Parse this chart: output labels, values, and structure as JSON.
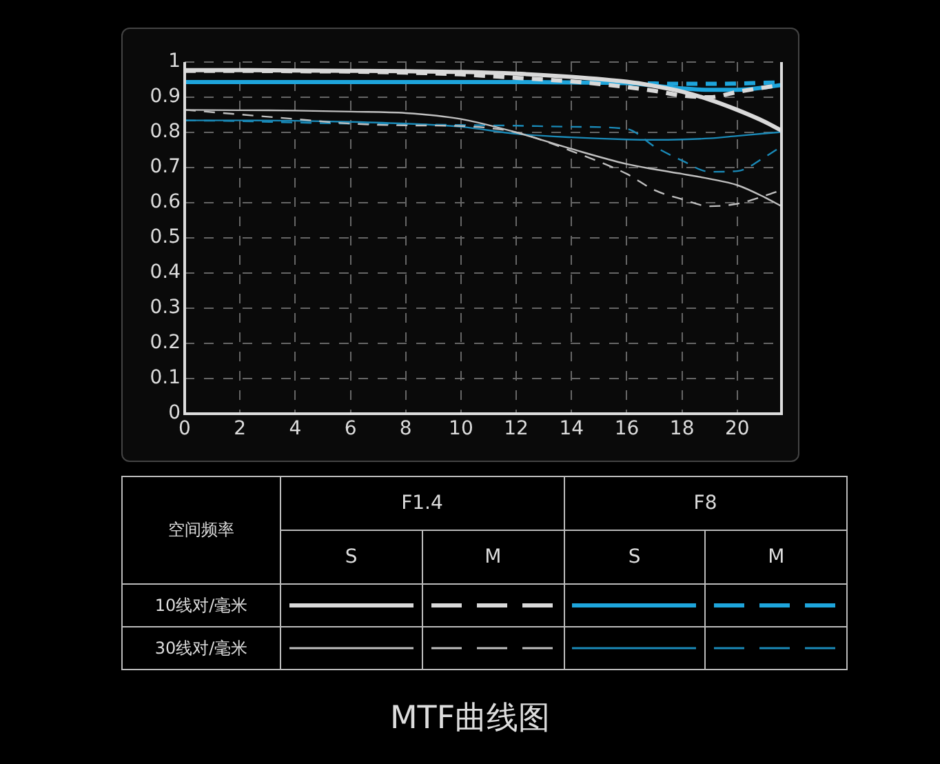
{
  "chart_data": {
    "type": "line",
    "title": "MTF曲线图",
    "legend_title": "空间频率",
    "annotations": [
      "F1.4",
      "F8",
      "S",
      "M",
      "S",
      "M",
      "10线对/毫米",
      "30线对/毫米"
    ],
    "x": [
      0,
      2,
      4,
      6,
      8,
      10,
      12,
      14,
      16,
      17,
      18,
      19,
      20,
      21,
      21.6
    ],
    "xlim": [
      0,
      21.6
    ],
    "xticks": [
      0,
      2,
      4,
      6,
      8,
      10,
      12,
      14,
      16,
      18,
      20
    ],
    "ylim": [
      0,
      1
    ],
    "yticks": [
      0,
      0.1,
      0.2,
      0.3,
      0.4,
      0.5,
      0.6,
      0.7,
      0.8,
      0.9,
      1
    ],
    "grid": true,
    "marker": "none",
    "series": [
      {
        "color": "#d9d9d9",
        "line_style": "solid",
        "values": [
          0.977,
          0.977,
          0.976,
          0.975,
          0.974,
          0.972,
          0.967,
          0.958,
          0.944,
          0.932,
          0.916,
          0.893,
          0.864,
          0.83,
          0.805
        ]
      },
      {
        "color": "#d9d9d9",
        "line_style": "dashed",
        "values": [
          0.975,
          0.975,
          0.974,
          0.973,
          0.97,
          0.965,
          0.955,
          0.945,
          0.929,
          0.918,
          0.905,
          0.9,
          0.915,
          0.928,
          0.935
        ]
      },
      {
        "color": "#1ea5dc",
        "line_style": "solid",
        "values": [
          0.943,
          0.943,
          0.943,
          0.943,
          0.943,
          0.943,
          0.943,
          0.942,
          0.94,
          0.933,
          0.925,
          0.921,
          0.921,
          0.928,
          0.935
        ]
      },
      {
        "color": "#1ea5dc",
        "line_style": "dashed",
        "values": [
          0.943,
          0.943,
          0.943,
          0.943,
          0.943,
          0.943,
          0.943,
          0.943,
          0.94,
          0.939,
          0.938,
          0.938,
          0.939,
          0.941,
          0.942
        ]
      },
      {
        "color": "#bfbfbf",
        "line_style": "solid",
        "values": [
          0.864,
          0.863,
          0.862,
          0.859,
          0.855,
          0.838,
          0.8,
          0.753,
          0.71,
          0.695,
          0.682,
          0.668,
          0.65,
          0.615,
          0.59
        ]
      },
      {
        "color": "#bfbfbf",
        "line_style": "dashed",
        "values": [
          0.864,
          0.851,
          0.838,
          0.825,
          0.82,
          0.818,
          0.8,
          0.747,
          0.682,
          0.636,
          0.61,
          0.59,
          0.597,
          0.62,
          0.636
        ]
      },
      {
        "color": "#1a8ab8",
        "line_style": "solid",
        "values": [
          0.834,
          0.834,
          0.833,
          0.83,
          0.825,
          0.816,
          0.796,
          0.786,
          0.78,
          0.779,
          0.78,
          0.783,
          0.79,
          0.797,
          0.801
        ]
      },
      {
        "color": "#1a8ab8",
        "line_style": "dashed",
        "values": [
          0.834,
          0.832,
          0.828,
          0.825,
          0.823,
          0.821,
          0.819,
          0.816,
          0.81,
          0.76,
          0.72,
          0.688,
          0.69,
          0.73,
          0.76
        ]
      }
    ]
  }
}
